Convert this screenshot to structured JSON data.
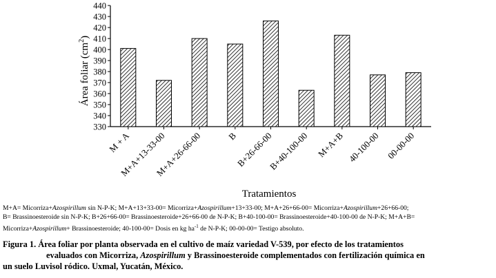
{
  "chart_data": {
    "type": "bar",
    "categories": [
      "M + A",
      "M+A+13-33-00",
      "M+A+26-66-00",
      "B",
      "B+26-66-00",
      "B+40-100-00",
      "M+A+B",
      "40-100-00",
      "00-00-00"
    ],
    "values": [
      401,
      372,
      410,
      405,
      426,
      363,
      413,
      377,
      379
    ],
    "ylim": [
      330,
      440
    ],
    "yticks": [
      330,
      340,
      350,
      360,
      370,
      380,
      390,
      400,
      410,
      420,
      430,
      440
    ],
    "ylabel": "Área foliar (cm²)",
    "xlabel": "Tratamientos",
    "bar_fill": "hatched",
    "grid": false
  },
  "legend_note": {
    "line1": "M+A= Micorriza+Azospirillum sin N-P-K; M+A+13+33-00= Micorriza+Azospirillum+13+33-00; M+A+26+66-00= Micorriza+Azospirillum+26+66-00;",
    "line2": "B= Brassinoesteroide sin N-P-K; B+26+66-00= Brassinoesteroide+26+66-00 de N-P-K; B+40-100-00= Brassinoesteroide+40-100-00 de N-P-K; M+A+B=",
    "line3": "Micorriza+Azospirillum+ Brassinoesteroide; 40-100-00= Dosis en kg ha-1 de N-P-K; 00-00-00= Testigo absoluto."
  },
  "caption": {
    "line1": "Figura 1. Área foliar por planta observada en el cultivo de maíz variedad V-539, por efecto de los tratamientos",
    "line2": "evaluados con Micorriza, Azospirillum y Brassinoesteroide complementados con fertilización química en",
    "line3": "un suelo Luvisol ródico. Uxmal, Yucatán, México."
  }
}
